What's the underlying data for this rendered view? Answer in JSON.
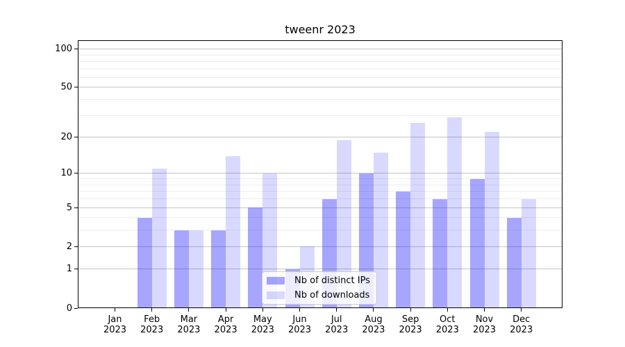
{
  "chart_data": {
    "type": "bar",
    "title": "tweenr 2023",
    "x_year": "2023",
    "categories": [
      "Jan",
      "Feb",
      "Mar",
      "Apr",
      "May",
      "Jun",
      "Jul",
      "Aug",
      "Sep",
      "Oct",
      "Nov",
      "Dec"
    ],
    "series": [
      {
        "name": "Nb of distinct IPs",
        "color": "rgba(0,0,255,0.35)",
        "solid_color": "#a6a6ff",
        "values": [
          0,
          4,
          3,
          3,
          5,
          1,
          6,
          10,
          7,
          6,
          9,
          4
        ]
      },
      {
        "name": "Nb of downloads",
        "color": "rgba(0,0,255,0.15)",
        "solid_color": "#d9d9ff",
        "values": [
          0,
          11,
          3,
          14,
          10,
          2,
          19,
          15,
          26,
          29,
          22,
          6
        ]
      }
    ],
    "y_scale": "log1p",
    "ylim": [
      0,
      117
    ],
    "yticks": [
      0,
      1,
      2,
      5,
      10,
      20,
      50,
      100
    ],
    "minor_yticks": [
      3,
      4,
      6,
      7,
      8,
      9,
      30,
      40,
      60,
      70,
      80,
      90
    ],
    "grid": true,
    "legend_position": "lower center",
    "colors": {
      "major_grid": "#c6c6c6",
      "minor_grid": "#ededed",
      "axis": "#000000",
      "background": "#ffffff",
      "legend_border": "#cccccc"
    }
  }
}
